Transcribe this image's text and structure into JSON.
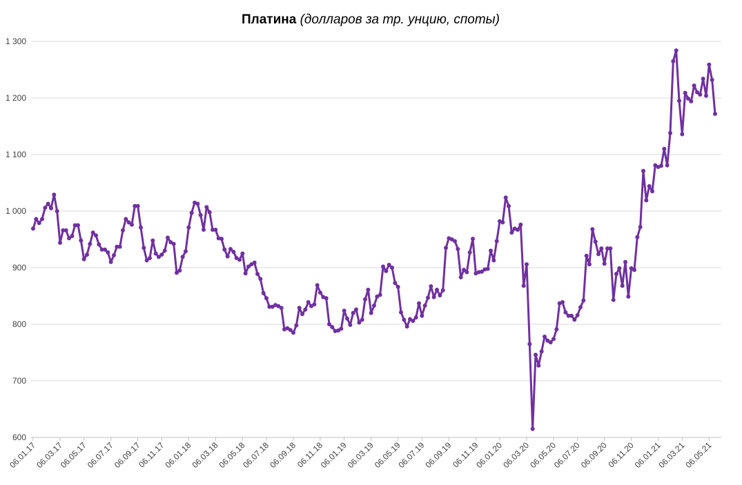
{
  "chart_data": {
    "type": "line",
    "title": "Платина",
    "subtitle": "(долларов за тр. унцию, споты)",
    "color": "#7030a0",
    "grid": true,
    "ylim": [
      600,
      1300
    ],
    "yticks": [
      600,
      700,
      800,
      900,
      {
        "value": 1000,
        "label": "1 000"
      },
      {
        "value": 1100,
        "label": "1 100"
      },
      {
        "value": 1200,
        "label": "1 200"
      },
      {
        "value": 1300,
        "label": "1 300"
      }
    ],
    "categories": [
      "06.01.17",
      null,
      null,
      null,
      null,
      null,
      null,
      null,
      null,
      "06.03.17",
      null,
      null,
      null,
      null,
      null,
      null,
      null,
      "06.05.17",
      null,
      null,
      null,
      null,
      null,
      null,
      null,
      null,
      "06.07.17",
      null,
      null,
      null,
      null,
      null,
      null,
      null,
      null,
      "06.09.17",
      null,
      null,
      null,
      null,
      null,
      null,
      null,
      "06.11.17",
      null,
      null,
      null,
      null,
      null,
      null,
      null,
      null,
      "06.01.18",
      null,
      null,
      null,
      null,
      null,
      null,
      null,
      null,
      "06.03.18",
      null,
      null,
      null,
      null,
      null,
      null,
      null,
      null,
      "06.05.18",
      null,
      null,
      null,
      null,
      null,
      null,
      null,
      "06.07.18",
      null,
      null,
      null,
      null,
      null,
      null,
      null,
      null,
      "06.09.18",
      null,
      null,
      null,
      null,
      null,
      null,
      null,
      null,
      "06.11.18",
      null,
      null,
      null,
      null,
      null,
      null,
      null,
      "06.01.19",
      null,
      null,
      null,
      null,
      null,
      null,
      null,
      null,
      "06.03.19",
      null,
      null,
      null,
      null,
      null,
      null,
      null,
      null,
      "06.05.19",
      null,
      null,
      null,
      null,
      null,
      null,
      null,
      "06.07.19",
      null,
      null,
      null,
      null,
      null,
      null,
      null,
      null,
      "06.09.19",
      null,
      null,
      null,
      null,
      null,
      null,
      null,
      null,
      "06.11.19",
      null,
      null,
      null,
      null,
      null,
      null,
      null,
      "06.01.20",
      null,
      null,
      null,
      null,
      null,
      null,
      null,
      null,
      "06.03.20",
      null,
      null,
      null,
      null,
      null,
      null,
      null,
      null,
      "06.05.20",
      null,
      null,
      null,
      null,
      null,
      null,
      null,
      "06.07.20",
      null,
      null,
      null,
      null,
      null,
      null,
      null,
      null,
      "06.09.20",
      null,
      null,
      null,
      null,
      null,
      null,
      null,
      null,
      "06.11.20",
      null,
      null,
      null,
      null,
      null,
      null,
      null,
      null,
      "06.01.21",
      null,
      null,
      null,
      null,
      null,
      null,
      null,
      "06.03.21",
      null,
      null,
      null,
      null,
      null,
      null,
      null,
      null,
      "06.05.21",
      null,
      null
    ],
    "values": [
      969,
      986,
      979,
      986,
      1006,
      1013,
      1005,
      1029,
      1000,
      944,
      966,
      966,
      952,
      956,
      975,
      975,
      948,
      915,
      923,
      942,
      962,
      957,
      941,
      932,
      932,
      927,
      910,
      922,
      937,
      937,
      966,
      986,
      980,
      976,
      1009,
      1009,
      971,
      935,
      913,
      917,
      948,
      925,
      919,
      923,
      930,
      953,
      945,
      942,
      891,
      895,
      919,
      929,
      971,
      997,
      1015,
      1013,
      993,
      967,
      1007,
      998,
      967,
      967,
      952,
      951,
      932,
      920,
      933,
      928,
      917,
      914,
      925,
      890,
      902,
      906,
      909,
      889,
      880,
      855,
      846,
      831,
      831,
      834,
      832,
      829,
      791,
      793,
      790,
      785,
      798,
      829,
      818,
      826,
      839,
      832,
      835,
      869,
      856,
      848,
      846,
      800,
      795,
      788,
      789,
      792,
      824,
      810,
      799,
      820,
      826,
      803,
      808,
      844,
      861,
      820,
      833,
      849,
      852,
      902,
      894,
      905,
      900,
      873,
      866,
      821,
      808,
      796,
      809,
      806,
      812,
      837,
      815,
      833,
      847,
      867,
      848,
      861,
      851,
      860,
      935,
      952,
      950,
      947,
      933,
      883,
      896,
      892,
      927,
      951,
      890,
      892,
      893,
      897,
      898,
      930,
      913,
      947,
      982,
      980,
      1024,
      1009,
      962,
      969,
      967,
      976,
      868,
      906,
      765,
      615,
      746,
      727,
      752,
      778,
      771,
      768,
      774,
      791,
      837,
      839,
      821,
      815,
      815,
      808,
      816,
      830,
      842,
      921,
      906,
      968,
      946,
      924,
      934,
      907,
      934,
      934,
      843,
      889,
      899,
      868,
      910,
      849,
      899,
      896,
      954,
      972,
      1071,
      1019,
      1044,
      1035,
      1081,
      1078,
      1080,
      1110,
      1081,
      1138,
      1265,
      1284,
      1195,
      1136,
      1209,
      1199,
      1194,
      1222,
      1210,
      1206,
      1234,
      1204,
      1259,
      1232,
      1172
    ]
  }
}
